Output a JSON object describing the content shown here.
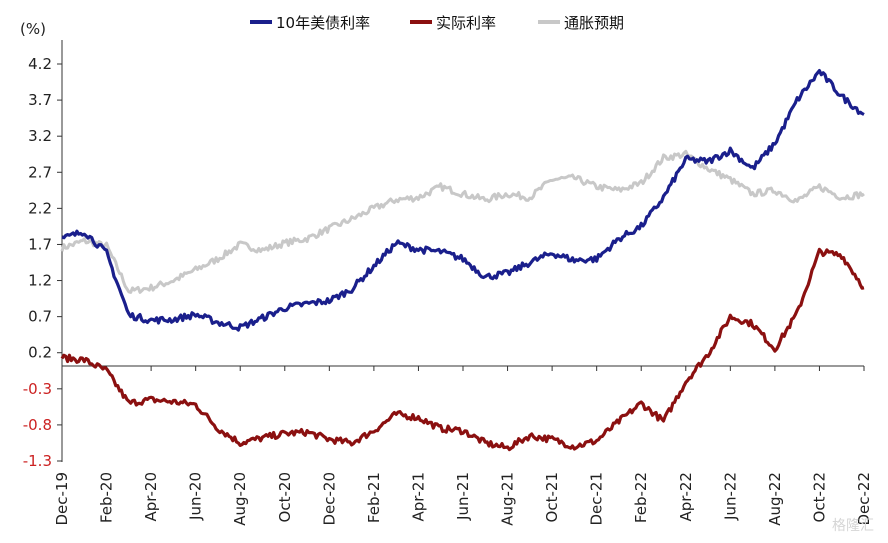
{
  "chart_data": {
    "type": "line",
    "y_unit": "(%)",
    "yticks": [
      4.2,
      3.7,
      3.2,
      2.7,
      2.2,
      1.7,
      1.2,
      0.7,
      0.2,
      -0.3,
      -0.8,
      -1.3
    ],
    "ytick_labels": [
      "4.2",
      "3.7",
      "3.2",
      "2.7",
      "2.2",
      "1.7",
      "1.2",
      "0.7",
      "0.2",
      "-0.3",
      "-0.8",
      "-1.3"
    ],
    "ylim": [
      -1.3,
      4.45
    ],
    "xlim": [
      "2019-12",
      "2022-12"
    ],
    "xtick_labels": [
      "Dec-19",
      "Feb-20",
      "Apr-20",
      "Jun-20",
      "Aug-20",
      "Oct-20",
      "Dec-20",
      "Feb-21",
      "Apr-21",
      "Jun-21",
      "Aug-21",
      "Oct-21",
      "Dec-21",
      "Feb-22",
      "Apr-22",
      "Jun-22",
      "Aug-22",
      "Oct-22",
      "Dec-22"
    ],
    "legend_position": "top",
    "grid": false,
    "series": [
      {
        "name": "10年美债利率",
        "color": "#1a1f8c",
        "points": [
          [
            "2019-12",
            1.78
          ],
          [
            "2020-01",
            1.88
          ],
          [
            "2020-02",
            1.58
          ],
          [
            "2020-03",
            0.72
          ],
          [
            "2020-04",
            0.65
          ],
          [
            "2020-05",
            0.66
          ],
          [
            "2020-06",
            0.73
          ],
          [
            "2020-07",
            0.62
          ],
          [
            "2020-08",
            0.55
          ],
          [
            "2020-09",
            0.68
          ],
          [
            "2020-10",
            0.82
          ],
          [
            "2020-11",
            0.88
          ],
          [
            "2020-12",
            0.92
          ],
          [
            "2021-01",
            1.08
          ],
          [
            "2021-02",
            1.4
          ],
          [
            "2021-03",
            1.72
          ],
          [
            "2021-04",
            1.63
          ],
          [
            "2021-05",
            1.6
          ],
          [
            "2021-06",
            1.5
          ],
          [
            "2021-07",
            1.25
          ],
          [
            "2021-08",
            1.3
          ],
          [
            "2021-09",
            1.45
          ],
          [
            "2021-10",
            1.58
          ],
          [
            "2021-11",
            1.48
          ],
          [
            "2021-12",
            1.5
          ],
          [
            "2022-01",
            1.78
          ],
          [
            "2022-02",
            1.95
          ],
          [
            "2022-03",
            2.35
          ],
          [
            "2022-04",
            2.88
          ],
          [
            "2022-05",
            2.85
          ],
          [
            "2022-06",
            3.0
          ],
          [
            "2022-07",
            2.75
          ],
          [
            "2022-08",
            3.1
          ],
          [
            "2022-09",
            3.7
          ],
          [
            "2022-10",
            4.1
          ],
          [
            "2022-11",
            3.75
          ],
          [
            "2022-12",
            3.5
          ]
        ]
      },
      {
        "name": "实际利率",
        "color": "#8b1010",
        "points": [
          [
            "2019-12",
            0.13
          ],
          [
            "2020-01",
            0.1
          ],
          [
            "2020-02",
            -0.05
          ],
          [
            "2020-03",
            -0.5
          ],
          [
            "2020-04",
            -0.45
          ],
          [
            "2020-05",
            -0.48
          ],
          [
            "2020-06",
            -0.52
          ],
          [
            "2020-07",
            -0.85
          ],
          [
            "2020-08",
            -1.05
          ],
          [
            "2020-09",
            -0.98
          ],
          [
            "2020-10",
            -0.92
          ],
          [
            "2020-11",
            -0.9
          ],
          [
            "2020-12",
            -1.0
          ],
          [
            "2021-01",
            -1.05
          ],
          [
            "2021-02",
            -0.88
          ],
          [
            "2021-03",
            -0.65
          ],
          [
            "2021-04",
            -0.7
          ],
          [
            "2021-05",
            -0.85
          ],
          [
            "2021-06",
            -0.88
          ],
          [
            "2021-07",
            -1.05
          ],
          [
            "2021-08",
            -1.12
          ],
          [
            "2021-09",
            -0.95
          ],
          [
            "2021-10",
            -1.0
          ],
          [
            "2021-11",
            -1.1
          ],
          [
            "2021-12",
            -1.02
          ],
          [
            "2022-01",
            -0.75
          ],
          [
            "2022-02",
            -0.5
          ],
          [
            "2022-03",
            -0.75
          ],
          [
            "2022-04",
            -0.2
          ],
          [
            "2022-05",
            0.18
          ],
          [
            "2022-06",
            0.7
          ],
          [
            "2022-07",
            0.6
          ],
          [
            "2022-08",
            0.25
          ],
          [
            "2022-09",
            0.75
          ],
          [
            "2022-10",
            1.6
          ],
          [
            "2022-11",
            1.55
          ],
          [
            "2022-12",
            1.1
          ]
        ]
      },
      {
        "name": "通胀预期",
        "color": "#c8c8c8",
        "points": [
          [
            "2019-12",
            1.65
          ],
          [
            "2020-01",
            1.75
          ],
          [
            "2020-02",
            1.68
          ],
          [
            "2020-03",
            1.05
          ],
          [
            "2020-04",
            1.1
          ],
          [
            "2020-05",
            1.2
          ],
          [
            "2020-06",
            1.35
          ],
          [
            "2020-07",
            1.5
          ],
          [
            "2020-08",
            1.7
          ],
          [
            "2020-09",
            1.62
          ],
          [
            "2020-10",
            1.72
          ],
          [
            "2020-11",
            1.78
          ],
          [
            "2020-12",
            1.92
          ],
          [
            "2021-01",
            2.05
          ],
          [
            "2021-02",
            2.2
          ],
          [
            "2021-03",
            2.32
          ],
          [
            "2021-04",
            2.35
          ],
          [
            "2021-05",
            2.5
          ],
          [
            "2021-06",
            2.4
          ],
          [
            "2021-07",
            2.32
          ],
          [
            "2021-08",
            2.4
          ],
          [
            "2021-09",
            2.35
          ],
          [
            "2021-10",
            2.6
          ],
          [
            "2021-11",
            2.62
          ],
          [
            "2021-12",
            2.5
          ],
          [
            "2022-01",
            2.45
          ],
          [
            "2022-02",
            2.55
          ],
          [
            "2022-03",
            2.9
          ],
          [
            "2022-04",
            2.95
          ],
          [
            "2022-05",
            2.75
          ],
          [
            "2022-06",
            2.6
          ],
          [
            "2022-07",
            2.4
          ],
          [
            "2022-08",
            2.45
          ],
          [
            "2022-09",
            2.3
          ],
          [
            "2022-10",
            2.5
          ],
          [
            "2022-11",
            2.35
          ],
          [
            "2022-12",
            2.4
          ]
        ]
      }
    ]
  },
  "watermark": "格隆汇"
}
